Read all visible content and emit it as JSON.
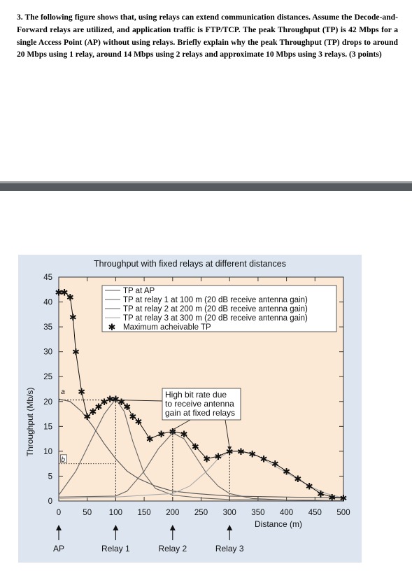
{
  "question": {
    "text": "3. The following figure shows that, using relays can extend communication distances. Assume the Decode-and-Forward relays are utilized, and application traffic is FTP/TCP. The peak Throughput (TP) is 42 Mbps for a single Access Point (AP) without using relays. Briefly explain why the peak Throughput (TP) drops to around 20 Mbps using 1 relay, around 14 Mbps using 2 relays and approximate 10 Mbps using 3 relays. (3 points)"
  },
  "chart_data": {
    "type": "line",
    "title": "Throughput with fixed relays at different distances",
    "xlabel": "Distance (m)",
    "ylabel": "Throughput (Mb/s)",
    "xlim": [
      0,
      500
    ],
    "ylim": [
      0,
      45
    ],
    "x_ticks": [
      "0",
      "50",
      "100",
      "150",
      "200",
      "250",
      "300",
      "350",
      "400",
      "450",
      "500"
    ],
    "y_ticks": [
      "0",
      "5",
      "10",
      "15",
      "20",
      "25",
      "30",
      "35",
      "40",
      "45"
    ],
    "legend_position": "top-right",
    "series": [
      {
        "name": "TP at AP",
        "x": [
          0,
          20,
          40,
          60,
          80,
          100,
          120,
          140,
          170,
          200,
          240,
          300,
          400,
          500
        ],
        "values": [
          20.5,
          20,
          18,
          15,
          11.5,
          8.5,
          6,
          4.5,
          3,
          2,
          1.5,
          1,
          0.8,
          0.6
        ]
      },
      {
        "name": "TP at relay 1 at 100 m (20 dB receive antenna gain)",
        "x": [
          0,
          30,
          60,
          80,
          100,
          115,
          130,
          150,
          170,
          200,
          250,
          300,
          400,
          500
        ],
        "values": [
          1.2,
          6,
          13,
          17.5,
          20.5,
          18,
          12,
          5.5,
          2.5,
          1.2,
          0.6,
          0.3,
          0.2,
          0.1
        ]
      },
      {
        "name": "TP at relay 2 at 200 m (20 dB receive antenna gain)",
        "x": [
          0,
          100,
          120,
          150,
          175,
          200,
          220,
          240,
          260,
          280,
          300,
          340,
          400,
          500
        ],
        "values": [
          0.8,
          1,
          2,
          6,
          10.5,
          13.7,
          12.5,
          9,
          5.5,
          3,
          1.5,
          0.5,
          0.2,
          0.1
        ]
      },
      {
        "name": "TP at relay 3 at 300 m (20 dB receive antenna gain)",
        "x": [
          0,
          100,
          200,
          230,
          260,
          280,
          300,
          320,
          350,
          380,
          410,
          440,
          470,
          500
        ],
        "values": [
          0.5,
          0.8,
          1.5,
          3,
          6,
          8.5,
          10,
          10,
          9,
          7,
          5,
          3,
          1.5,
          0.6
        ]
      },
      {
        "name": "Maximum acheivable TP",
        "marker": "star",
        "x": [
          0,
          10,
          20,
          25,
          30,
          40,
          50,
          60,
          70,
          80,
          90,
          100,
          110,
          120,
          130,
          140,
          160,
          180,
          200,
          220,
          240,
          260,
          280,
          300,
          320,
          340,
          360,
          380,
          400,
          420,
          440,
          460,
          480,
          500
        ],
        "values": [
          42,
          42,
          41,
          37,
          30,
          22,
          17,
          18,
          19,
          20,
          20.5,
          20.5,
          20,
          19,
          17,
          16,
          12.5,
          13.5,
          14,
          13.5,
          11,
          8.5,
          9,
          10,
          10,
          9.5,
          8.5,
          7.5,
          6,
          4.5,
          3,
          1.5,
          0.8,
          0.6
        ]
      }
    ],
    "annotations": [
      {
        "text": "High bit rate due to receive antenna gain at fixed relays",
        "lines": [
          "High bit rate due",
          "to receive antenna",
          "gain at fixed relays"
        ]
      },
      {
        "text": "a"
      },
      {
        "text": "b"
      }
    ],
    "relay_markers": [
      {
        "label": "AP",
        "x": 0
      },
      {
        "label": "Relay 1",
        "x": 100
      },
      {
        "label": "Relay 2",
        "x": 200
      },
      {
        "label": "Relay 3",
        "x": 300
      }
    ]
  }
}
